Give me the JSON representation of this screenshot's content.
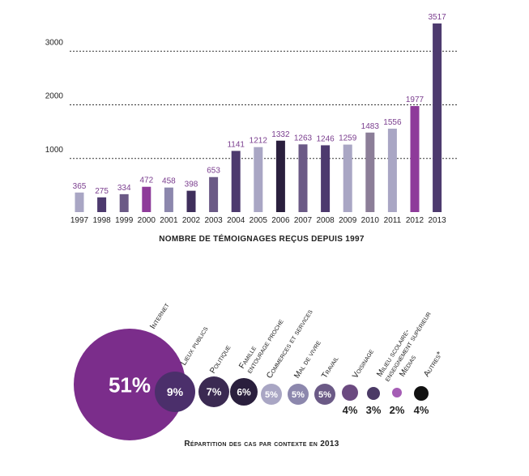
{
  "chart_data": [
    {
      "type": "bar",
      "categories": [
        "1997",
        "1998",
        "1999",
        "2000",
        "2001",
        "2002",
        "2003",
        "2004",
        "2005",
        "2006",
        "2007",
        "2008",
        "2009",
        "2010",
        "2011",
        "2012",
        "2013"
      ],
      "values": [
        365,
        275,
        334,
        472,
        458,
        398,
        653,
        1141,
        1212,
        1332,
        1263,
        1246,
        1259,
        1483,
        1556,
        1977,
        3517
      ],
      "colors": [
        "#a9a6c4",
        "#4d3a6e",
        "#6b5a86",
        "#8e3b9a",
        "#8c87ad",
        "#3f2f5c",
        "#6b5a86",
        "#4d3a6e",
        "#a9a6c4",
        "#2a1f3d",
        "#6b5a86",
        "#4d3a6e",
        "#a9a6c4",
        "#8c7e98",
        "#a9a6c4",
        "#8e3b9a",
        "#4d3a6e"
      ],
      "value_label_color": "#7a3d8e",
      "y_ticks": [
        1000,
        2000,
        3000
      ],
      "y_tick_labels": [
        "1000",
        "2000",
        "3000"
      ],
      "ylim": [
        0,
        3517
      ],
      "grid": true,
      "xlabel": "Nombre de témoignages reçus depuis 1997"
    },
    {
      "type": "bubble",
      "title": "Répartition des cas par contexte en 2013",
      "items": [
        {
          "label": "Internet",
          "value": 51,
          "display": "51%",
          "color": "#7b2d8b",
          "text_position": "inside"
        },
        {
          "label": "Lieux publics",
          "value": 9,
          "display": "9%",
          "color": "#4b2f6b",
          "text_position": "inside"
        },
        {
          "label": "Politique",
          "value": 7,
          "display": "7%",
          "color": "#3b2a52",
          "text_position": "inside"
        },
        {
          "label": "Famille\nentourage proche",
          "value": 6,
          "display": "6%",
          "color": "#2a1f3d",
          "text_position": "inside"
        },
        {
          "label": "Commerces et services",
          "value": 5,
          "display": "5%",
          "color": "#a9a6c4",
          "text_position": "inside"
        },
        {
          "label": "Mal de vivre",
          "value": 5,
          "display": "5%",
          "color": "#8c87ad",
          "text_position": "inside"
        },
        {
          "label": "Travail",
          "value": 5,
          "display": "5%",
          "color": "#6b5a86",
          "text_position": "inside"
        },
        {
          "label": "Voisinage",
          "value": 4,
          "display": "4%",
          "color": "#6b4a80",
          "text_position": "below"
        },
        {
          "label": "Milieu scolaire-\nenseignement supérieur",
          "value": 3,
          "display": "3%",
          "color": "#4b3a66",
          "text_position": "below"
        },
        {
          "label": "Médias",
          "value": 2,
          "display": "2%",
          "color": "#a55db5",
          "text_position": "below"
        },
        {
          "label": "Autres*",
          "value": 4,
          "display": "4%",
          "color": "#111111",
          "text_position": "below"
        }
      ]
    }
  ]
}
